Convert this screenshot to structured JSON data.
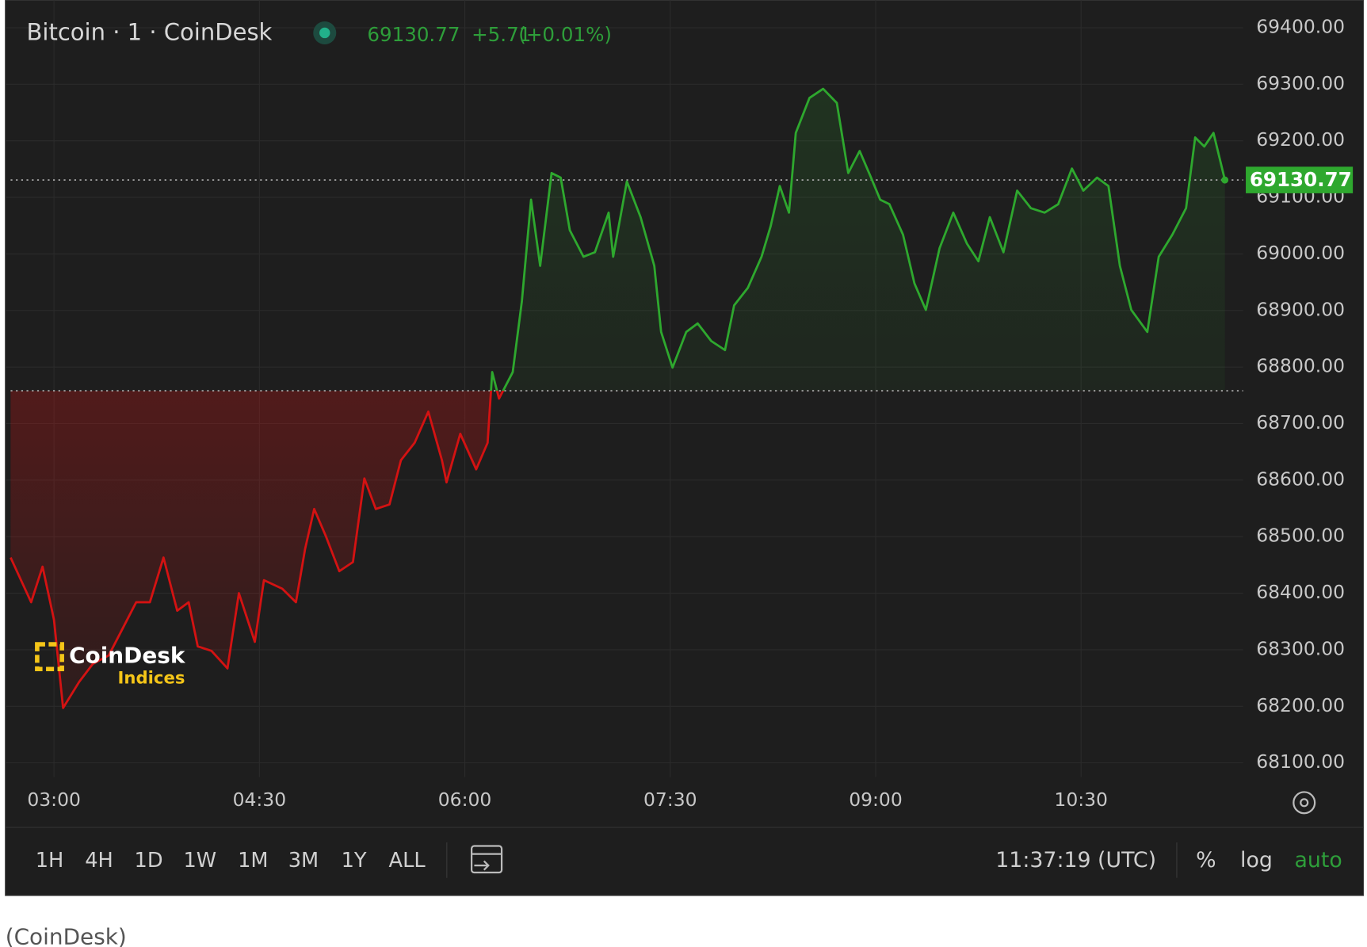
{
  "title": "Bitcoin · 1 · CoinDesk",
  "quote": {
    "price": "69130.77",
    "change": "+5.71",
    "change_pct": "(+0.01%)"
  },
  "logo": {
    "name": "CoinDesk",
    "sub": "Indices"
  },
  "chart_data": {
    "type": "line",
    "x": [
      "02:41",
      "02:50",
      "02:55",
      "03:00",
      "03:04",
      "03:11",
      "03:17",
      "03:24",
      "03:30",
      "03:36",
      "03:42",
      "03:48",
      "03:54",
      "03:59",
      "04:03",
      "04:09",
      "04:16",
      "04:21",
      "04:28",
      "04:32",
      "04:40",
      "04:46",
      "04:50",
      "04:54",
      "04:59",
      "05:05",
      "05:11",
      "05:16",
      "05:21",
      "05:27",
      "05:32",
      "05:38",
      "05:44",
      "05:50",
      "05:52",
      "05:58",
      "06:05",
      "06:10",
      "06:12",
      "06:15",
      "06:21",
      "06:25",
      "06:29",
      "06:33",
      "06:38",
      "06:42",
      "06:46",
      "06:52",
      "06:57",
      "07:03",
      "07:05",
      "07:11",
      "07:17",
      "07:23",
      "07:26",
      "07:31",
      "07:37",
      "07:42",
      "07:48",
      "07:54",
      "07:58",
      "08:04",
      "08:10",
      "08:14",
      "08:18",
      "08:22",
      "08:25",
      "08:31",
      "08:37",
      "08:43",
      "08:48",
      "08:53",
      "08:58",
      "09:02",
      "09:06",
      "09:12",
      "09:17",
      "09:22",
      "09:28",
      "09:34",
      "09:40",
      "09:45",
      "09:50",
      "09:56",
      "10:02",
      "10:08",
      "10:14",
      "10:20",
      "10:26",
      "10:31",
      "10:37",
      "10:42",
      "10:47",
      "10:52",
      "10:59",
      "11:04",
      "11:10",
      "11:16",
      "11:20",
      "11:24",
      "11:28",
      "11:33"
    ],
    "values": [
      68463,
      68384,
      68447,
      68353,
      68197,
      68243,
      68275,
      68290,
      68337,
      68384,
      68384,
      68463,
      68369,
      68384,
      68306,
      68298,
      68267,
      68400,
      68314,
      68423,
      68408,
      68384,
      68478,
      68549,
      68502,
      68439,
      68455,
      68603,
      68549,
      68557,
      68635,
      68666,
      68721,
      68635,
      68596,
      68682,
      68619,
      68666,
      68791,
      68744,
      68791,
      68916,
      69096,
      68979,
      69143,
      69135,
      69042,
      68995,
      69003,
      69073,
      68995,
      69128,
      69065,
      68979,
      68862,
      68799,
      68862,
      68877,
      68846,
      68830,
      68909,
      68940,
      68995,
      69049,
      69120,
      69073,
      69214,
      69276,
      69292,
      69267,
      69143,
      69182,
      69135,
      69096,
      69088,
      69034,
      68948,
      68901,
      69010,
      69073,
      69018,
      68987,
      69065,
      69003,
      69112,
      69081,
      69073,
      69088,
      69151,
      69112,
      69135,
      69120,
      68979,
      68901,
      68862,
      68995,
      69034,
      69081,
      69206,
      69190,
      69214,
      69130.77
    ],
    "color": "#2ea82e",
    "below_color": "#d41212",
    "baseline": 68758,
    "last_value_label": "69130.77",
    "xlim": [
      "02:41",
      "11:41"
    ],
    "xticks": [
      "03:00",
      "04:30",
      "06:00",
      "07:30",
      "09:00",
      "10:30"
    ],
    "ylim": [
      68075,
      69441
    ],
    "yticks": [
      {
        "value": 68100,
        "label": "68100.00"
      },
      {
        "value": 68200,
        "label": "68200.00"
      },
      {
        "value": 68300,
        "label": "68300.00"
      },
      {
        "value": 68400,
        "label": "68400.00"
      },
      {
        "value": 68500,
        "label": "68500.00"
      },
      {
        "value": 68600,
        "label": "68600.00"
      },
      {
        "value": 68700,
        "label": "68700.00"
      },
      {
        "value": 68800,
        "label": "68800.00"
      },
      {
        "value": 68900,
        "label": "68900.00"
      },
      {
        "value": 69000,
        "label": "69000.00"
      },
      {
        "value": 69100,
        "label": "69100.00"
      },
      {
        "value": 69200,
        "label": "69200.00"
      },
      {
        "value": 69300,
        "label": "69300.00"
      },
      {
        "value": 69400,
        "label": "69400.00"
      }
    ],
    "grid": true
  },
  "toolbar": {
    "ranges": [
      "1H",
      "4H",
      "1D",
      "1W",
      "1M",
      "3M",
      "1Y",
      "ALL"
    ],
    "clock": "11:37:19 (UTC)",
    "options": [
      "%",
      "log",
      "auto"
    ]
  },
  "caption": "(CoinDesk)"
}
